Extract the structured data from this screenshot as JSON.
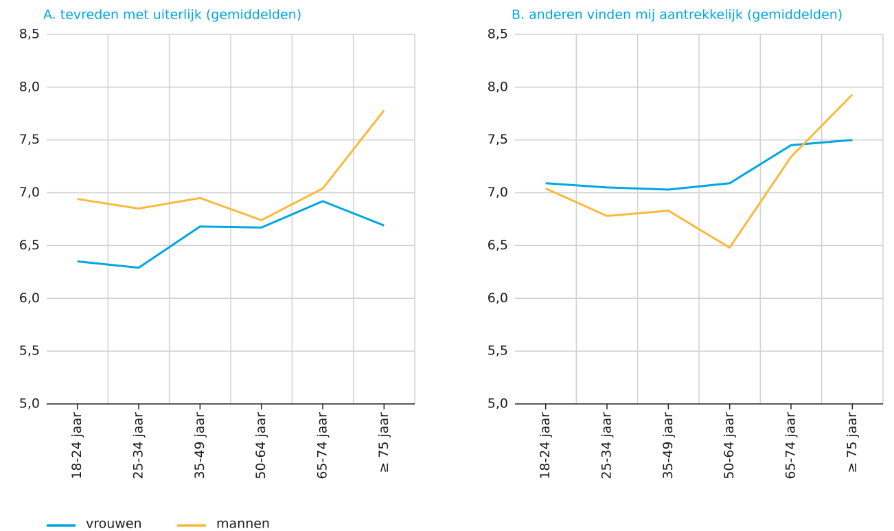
{
  "chart_data": [
    {
      "type": "line",
      "title": "A. tevreden met uiterlijk (gemiddelden)",
      "categories": [
        "18-24 jaar",
        "25-34 jaar",
        "35-49 jaar",
        "50-64 jaar",
        "65-74 jaar",
        "≥ 75 jaar"
      ],
      "series": [
        {
          "name": "vrouwen",
          "color": "#00a6e2",
          "values": [
            6.35,
            6.29,
            6.68,
            6.67,
            6.92,
            6.69
          ]
        },
        {
          "name": "mannen",
          "color": "#f9b93a",
          "values": [
            6.94,
            6.85,
            6.95,
            6.74,
            7.04,
            7.78
          ]
        }
      ],
      "ylim": [
        5.0,
        8.5
      ],
      "yticks": [
        {
          "value": 5.0,
          "label": "5,0"
        },
        {
          "value": 5.5,
          "label": "5,5"
        },
        {
          "value": 6.0,
          "label": "6,0"
        },
        {
          "value": 6.5,
          "label": "6,5"
        },
        {
          "value": 7.0,
          "label": "7,0"
        },
        {
          "value": 7.5,
          "label": "7,5"
        },
        {
          "value": 8.0,
          "label": "8,0"
        },
        {
          "value": 8.5,
          "label": "8,5"
        }
      ],
      "grid": true
    },
    {
      "type": "line",
      "title": "B. anderen vinden mij aantrekkelijk (gemiddelden)",
      "categories": [
        "18-24 jaar",
        "25-34 jaar",
        "35-49 jaar",
        "50-64 jaar",
        "65-74 jaar",
        "≥ 75 jaar"
      ],
      "series": [
        {
          "color": "#00a6e2",
          "values": [
            7.09,
            7.05,
            7.03,
            7.09,
            7.45,
            7.5
          ]
        },
        {
          "color": "#f9b93a",
          "values": [
            7.04,
            6.78,
            6.83,
            6.48,
            7.34,
            7.93
          ]
        }
      ],
      "ylim": [
        5.0,
        8.5
      ],
      "yticks": [
        {
          "value": 5.0,
          "label": "5,0"
        },
        {
          "value": 5.5,
          "label": "5,5"
        },
        {
          "value": 6.0,
          "label": "6,0"
        },
        {
          "value": 6.5,
          "label": "6,5"
        },
        {
          "value": 7.0,
          "label": "7,0"
        },
        {
          "value": 7.5,
          "label": "7,5"
        },
        {
          "value": 8.0,
          "label": "8,0"
        },
        {
          "value": 8.5,
          "label": "8,5"
        }
      ],
      "grid": true
    }
  ]
}
